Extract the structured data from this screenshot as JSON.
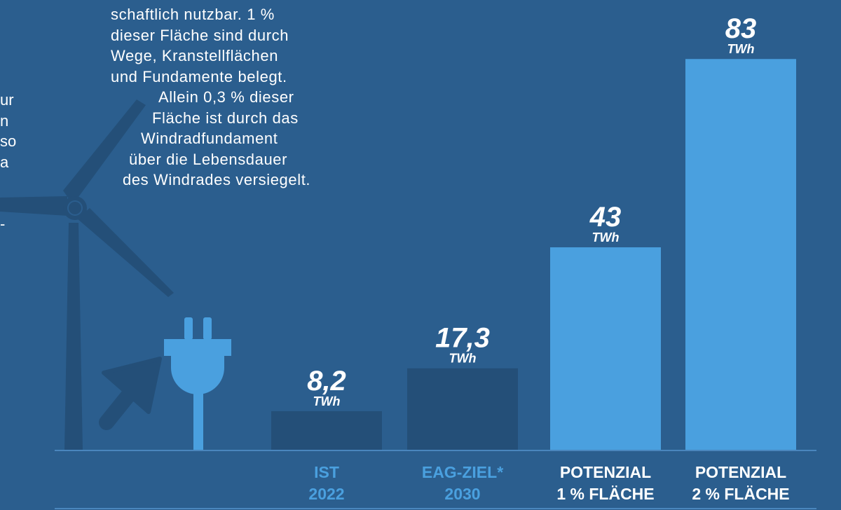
{
  "chart_data": {
    "type": "bar",
    "categories": [
      [
        "IST",
        "2022"
      ],
      [
        "EAG-ZIEL*",
        "2030"
      ],
      [
        "POTENZIAL",
        "1 % FLÄCHE"
      ],
      [
        "POTENZIAL",
        "2 % FLÄCHE"
      ]
    ],
    "values": [
      8.2,
      17.3,
      43,
      83
    ],
    "value_labels": [
      "8,2",
      "17,3",
      "43",
      "83"
    ],
    "unit": "TWh",
    "bar_colors": [
      "#244f78",
      "#244f78",
      "#4aa0df",
      "#4aa0df"
    ],
    "category_label_colors": [
      "#4aa0df",
      "#4aa0df",
      "#ffffff",
      "#ffffff"
    ]
  },
  "description": {
    "lines": [
      "schaftlich nutzbar. 1 %",
      "dieser Fläche sind durch",
      "Wege, Kranstellflächen",
      "und Fundamente belegt.",
      "Allein 0,3 % dieser",
      "Fläche ist durch das",
      "Windradfundament",
      "über die Lebensdauer",
      "des Windrades versiegelt."
    ]
  },
  "left_fragments": [
    "ur",
    "n",
    "so",
    "a",
    "",
    "",
    "-"
  ],
  "colors": {
    "background": "#2b5e8e",
    "dark_bar": "#244f78",
    "light_bar": "#4aa0df",
    "icon_dark": "#244f78",
    "plug": "#4aa0df",
    "axis": "#4a86bd"
  },
  "icons": [
    "wind-turbine-icon",
    "arrow-icon",
    "plug-icon"
  ]
}
